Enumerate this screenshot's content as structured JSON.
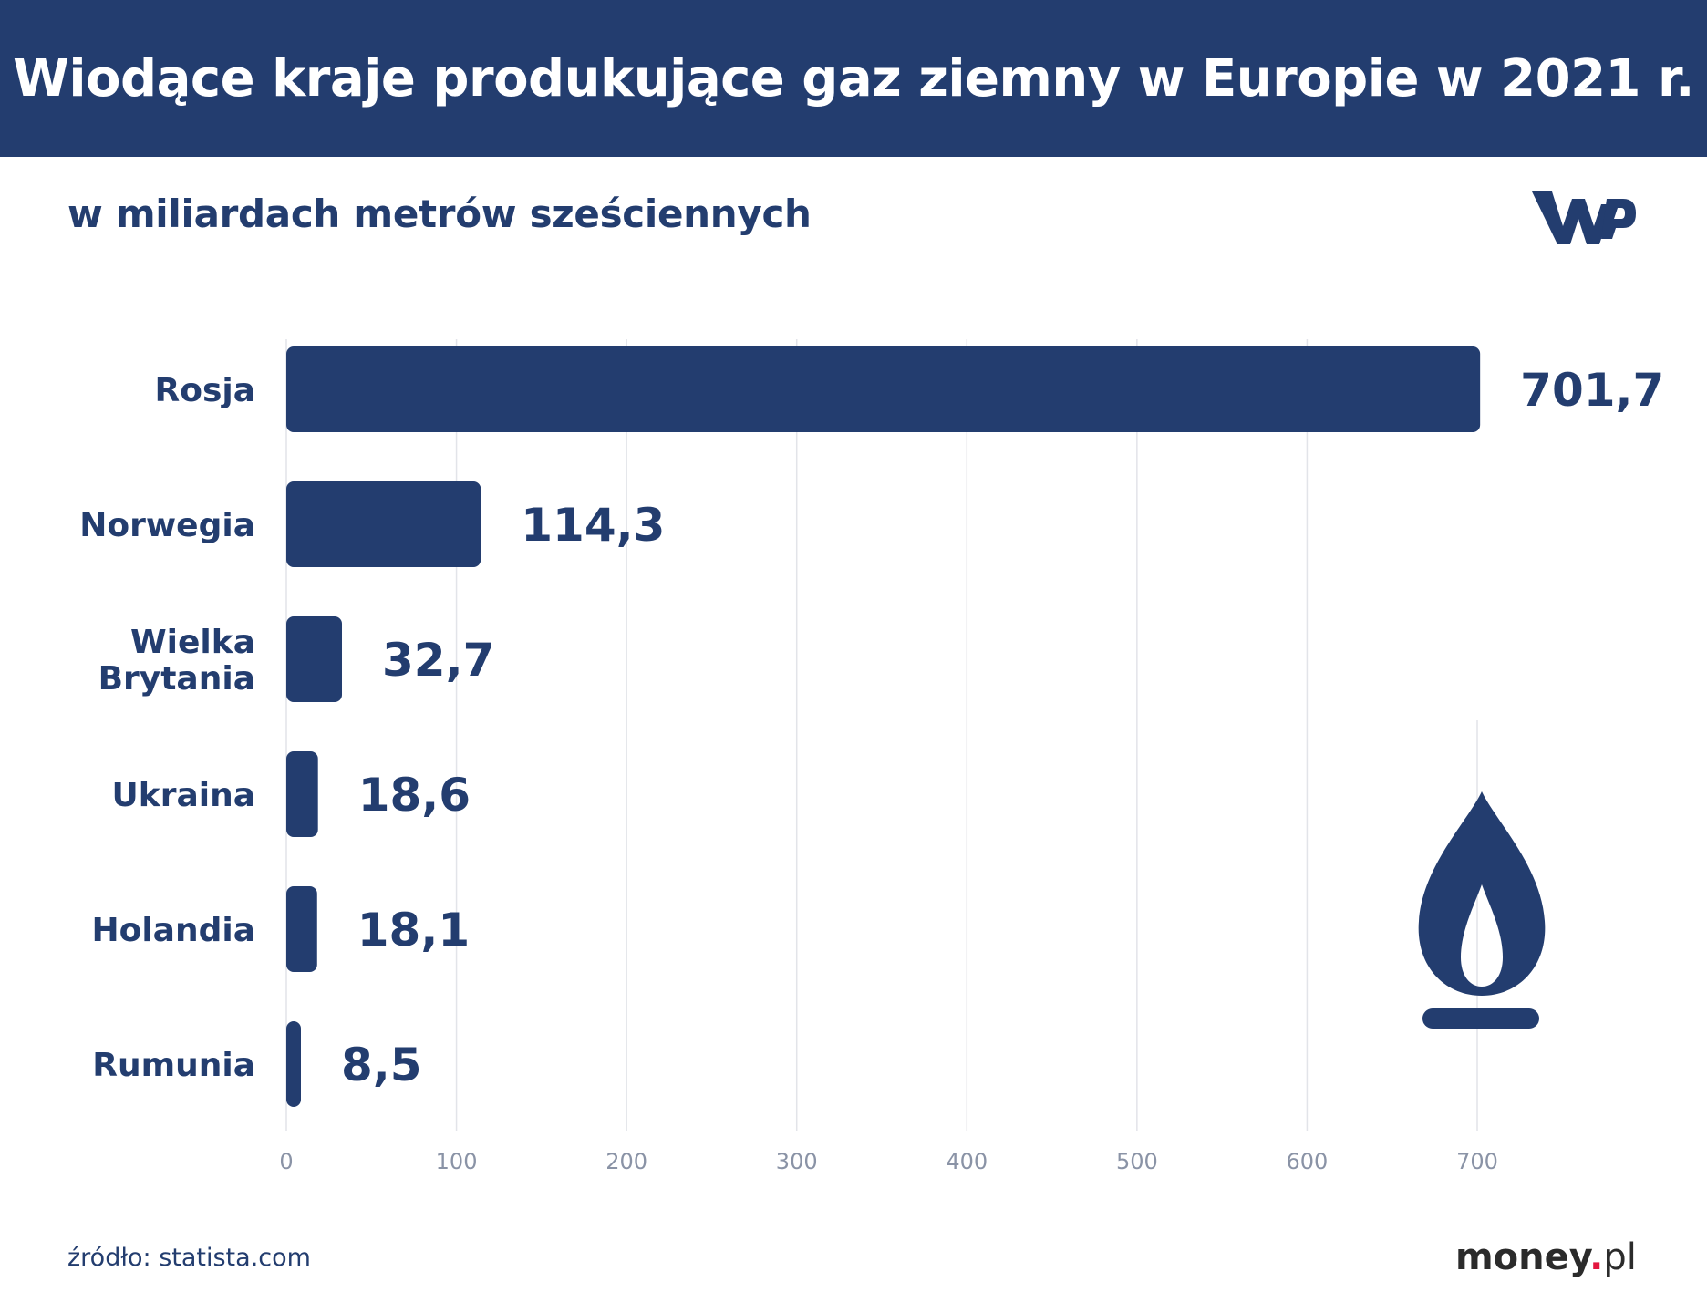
{
  "header": {
    "title": "Wiodące kraje produkujące gaz ziemny w Europie w 2021 r."
  },
  "subtitle": "w miliardach metrów sześciennych",
  "source": "źródło: statista.com",
  "brand": {
    "name": "money",
    "dot": ".",
    "tld": "pl"
  },
  "logo": {
    "icon": "wp-logo-icon",
    "text": "WP"
  },
  "illustration": {
    "icon": "gas-flame-icon"
  },
  "colors": {
    "primary": "#233d6f",
    "grid": "#e2e4e9",
    "tick": "#8a93a6",
    "brand_accent": "#e3163f"
  },
  "chart_data": {
    "type": "bar",
    "orientation": "horizontal",
    "title": "Wiodące kraje produkujące gaz ziemny w Europie w 2021 r.",
    "subtitle": "w miliardach metrów sześciennych",
    "categories": [
      [
        "Rosja"
      ],
      [
        "Norwegia"
      ],
      [
        "Wielka",
        "Brytania"
      ],
      [
        "Ukraina"
      ],
      [
        "Holandia"
      ],
      [
        "Rumunia"
      ]
    ],
    "values": [
      701.7,
      114.3,
      32.7,
      18.6,
      18.1,
      8.5
    ],
    "value_labels": [
      "701,7",
      "114,3",
      "32,7",
      "18,6",
      "18,1",
      "8,5"
    ],
    "xticks": [
      0,
      100,
      200,
      300,
      400,
      500,
      600,
      700
    ],
    "xlim": [
      0,
      700
    ],
    "grid": true,
    "legend": "none"
  }
}
